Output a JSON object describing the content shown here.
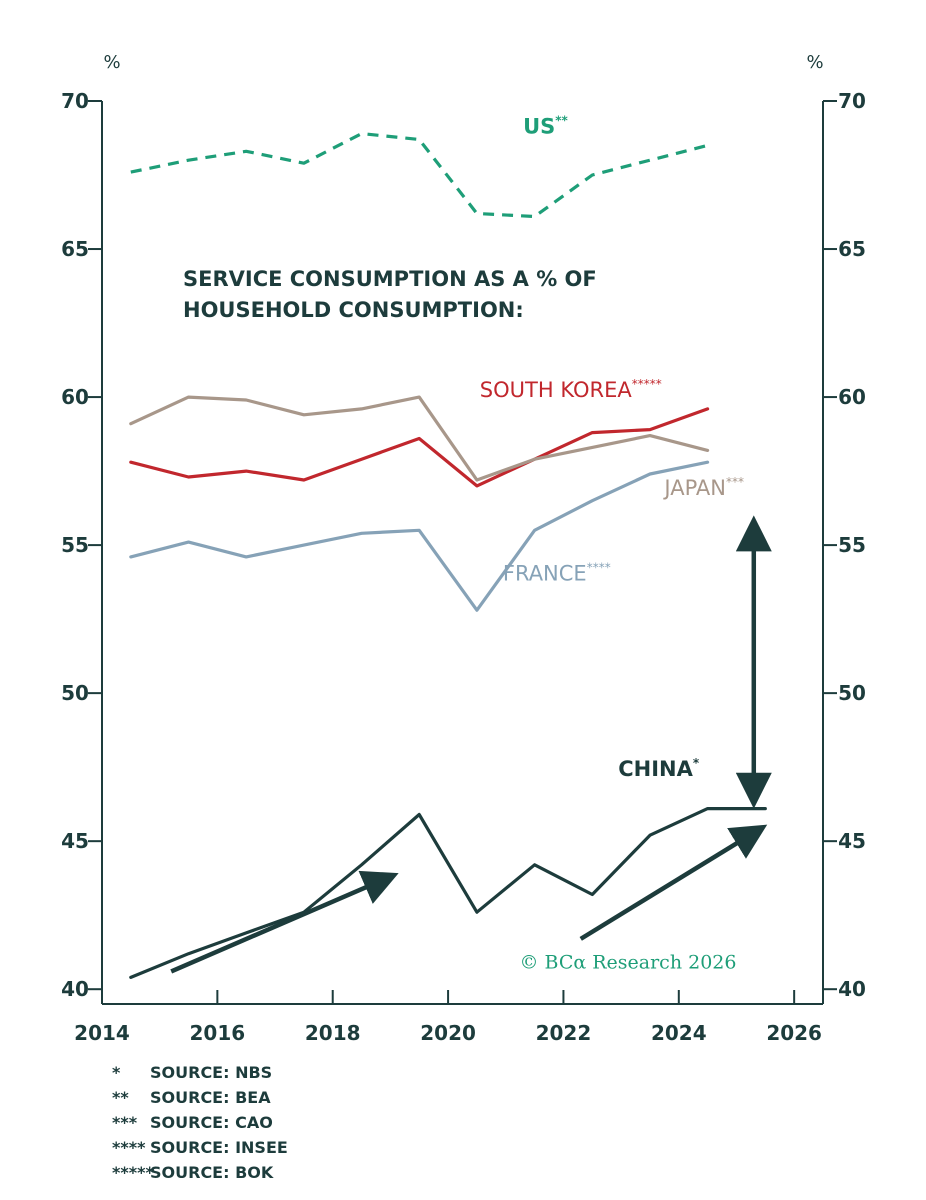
{
  "chart_data": {
    "type": "line",
    "unit_left": "%",
    "unit_right": "%",
    "title_lines": [
      "SERVICE CONSUMPTION AS A % OF",
      "HOUSEHOLD CONSUMPTION:"
    ],
    "xlim": [
      2014,
      2026.5
    ],
    "ylim": [
      39.5,
      70
    ],
    "x_ticks": [
      2014,
      2016,
      2018,
      2020,
      2022,
      2024,
      2026
    ],
    "y_ticks": [
      40,
      45,
      50,
      55,
      60,
      65,
      70
    ],
    "series": [
      {
        "name": "US",
        "superscript": "**",
        "color": "#1e9e78",
        "dashed": true,
        "bold_label": true,
        "x": [
          2014.5,
          2015.5,
          2016.5,
          2017.5,
          2018.5,
          2019.5,
          2020.5,
          2021.5,
          2022.5,
          2023.5,
          2024.5
        ],
        "values": [
          67.6,
          68.0,
          68.3,
          67.9,
          68.9,
          68.7,
          66.2,
          66.1,
          67.5,
          68.0,
          68.5
        ]
      },
      {
        "name": "SOUTH KOREA",
        "superscript": "*****",
        "color": "#c1272d",
        "dashed": false,
        "bold_label": false,
        "x": [
          2014.5,
          2015.5,
          2016.5,
          2017.5,
          2018.5,
          2019.5,
          2020.5,
          2021.5,
          2022.5,
          2023.5,
          2024.5
        ],
        "values": [
          57.8,
          57.3,
          57.5,
          57.2,
          57.9,
          58.6,
          57.0,
          57.9,
          58.8,
          58.9,
          59.6
        ]
      },
      {
        "name": "JAPAN",
        "superscript": "***",
        "color": "#a8978a",
        "dashed": false,
        "bold_label": false,
        "x": [
          2014.5,
          2015.5,
          2016.5,
          2017.5,
          2018.5,
          2019.5,
          2020.5,
          2021.5,
          2022.5,
          2023.5,
          2024.5
        ],
        "values": [
          59.1,
          60.0,
          59.9,
          59.4,
          59.6,
          60.0,
          57.2,
          57.9,
          58.3,
          58.7,
          58.2
        ]
      },
      {
        "name": "FRANCE",
        "superscript": "****",
        "color": "#86a2b7",
        "dashed": false,
        "bold_label": false,
        "x": [
          2014.5,
          2015.5,
          2016.5,
          2017.5,
          2018.5,
          2019.5,
          2020.5,
          2021.5,
          2022.5,
          2023.5,
          2024.5
        ],
        "values": [
          54.6,
          55.1,
          54.6,
          55.0,
          55.4,
          55.5,
          52.8,
          55.5,
          56.5,
          57.4,
          57.8
        ]
      },
      {
        "name": "CHINA",
        "superscript": "*",
        "color": "#1d3c3c",
        "dashed": false,
        "bold_label": true,
        "x": [
          2014.5,
          2015.5,
          2016.5,
          2017.5,
          2018.5,
          2019.5,
          2020.5,
          2021.5,
          2022.5,
          2023.5,
          2024.5,
          2025.5
        ],
        "values": [
          40.4,
          41.2,
          41.9,
          42.6,
          44.2,
          45.9,
          42.6,
          44.2,
          43.2,
          45.2,
          46.1,
          46.1
        ]
      }
    ],
    "label_positions": {
      "US": [
        2021.3,
        68.9
      ],
      "SOUTH KOREA": [
        2020.55,
        60.0
      ],
      "JAPAN": [
        2023.75,
        56.7
      ],
      "FRANCE": [
        2020.95,
        53.8
      ],
      "CHINA": [
        2022.95,
        47.2
      ]
    },
    "arrows": [
      {
        "from": [
          2015.2,
          40.6
        ],
        "to": [
          2019.0,
          43.8
        ],
        "double": false
      },
      {
        "from": [
          2022.3,
          41.7
        ],
        "to": [
          2025.4,
          45.4
        ],
        "double": false
      },
      {
        "from": [
          2025.3,
          55.7
        ],
        "to": [
          2025.3,
          46.4
        ],
        "double": true
      }
    ],
    "copyright": "© BCα Research 2026",
    "copyright_pos": [
      2025.0,
      40.7
    ],
    "footnotes": [
      {
        "marker": "*",
        "text": "SOURCE: NBS"
      },
      {
        "marker": "**",
        "text": "SOURCE: BEA"
      },
      {
        "marker": "***",
        "text": "SOURCE: CAO"
      },
      {
        "marker": "****",
        "text": "SOURCE: INSEE"
      },
      {
        "marker": "*****",
        "text": "SOURCE: BOK"
      }
    ]
  }
}
